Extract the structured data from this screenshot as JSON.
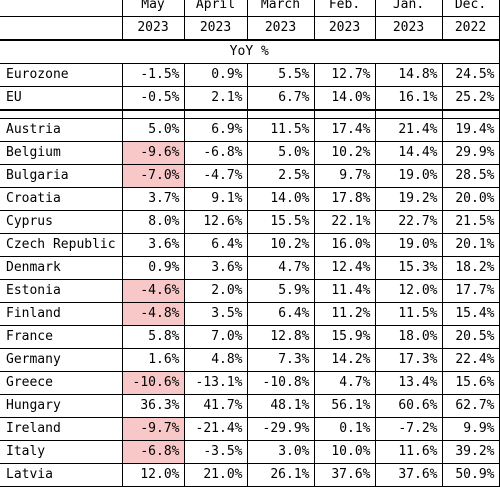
{
  "header": {
    "months": [
      "May",
      "April",
      "March",
      "Feb.",
      "Jan.",
      "Dec."
    ],
    "years": [
      "2023",
      "2023",
      "2023",
      "2023",
      "2023",
      "2022"
    ],
    "subtitle": "YoY %"
  },
  "highlight_color": "#f8c7c7",
  "aggregates": [
    {
      "country": "Eurozone",
      "values": [
        "-1.5%",
        "0.9%",
        "5.5%",
        "12.7%",
        "14.8%",
        "24.5%"
      ],
      "highlight": false
    },
    {
      "country": "EU",
      "values": [
        "-0.5%",
        "2.1%",
        "6.7%",
        "14.0%",
        "16.1%",
        "25.2%"
      ],
      "highlight": false
    }
  ],
  "countries": [
    {
      "country": "Austria",
      "values": [
        "5.0%",
        "6.9%",
        "11.5%",
        "17.4%",
        "21.4%",
        "19.4%"
      ],
      "highlight": false
    },
    {
      "country": "Belgium",
      "values": [
        "-9.6%",
        "-6.8%",
        "5.0%",
        "10.2%",
        "14.4%",
        "29.9%"
      ],
      "highlight": true
    },
    {
      "country": "Bulgaria",
      "values": [
        "-7.0%",
        "-4.7%",
        "2.5%",
        "9.7%",
        "19.0%",
        "28.5%"
      ],
      "highlight": true
    },
    {
      "country": "Croatia",
      "values": [
        "3.7%",
        "9.1%",
        "14.0%",
        "17.8%",
        "19.2%",
        "20.0%"
      ],
      "highlight": false
    },
    {
      "country": "Cyprus",
      "values": [
        "8.0%",
        "12.6%",
        "15.5%",
        "22.1%",
        "22.7%",
        "21.5%"
      ],
      "highlight": false
    },
    {
      "country": "Czech Republic",
      "values": [
        "3.6%",
        "6.4%",
        "10.2%",
        "16.0%",
        "19.0%",
        "20.1%"
      ],
      "highlight": false
    },
    {
      "country": "Denmark",
      "values": [
        "0.9%",
        "3.6%",
        "4.7%",
        "12.4%",
        "15.3%",
        "18.2%"
      ],
      "highlight": false
    },
    {
      "country": "Estonia",
      "values": [
        "-4.6%",
        "2.0%",
        "5.9%",
        "11.4%",
        "12.0%",
        "17.7%"
      ],
      "highlight": true
    },
    {
      "country": "Finland",
      "values": [
        "-4.8%",
        "3.5%",
        "6.4%",
        "11.2%",
        "11.5%",
        "15.4%"
      ],
      "highlight": true
    },
    {
      "country": "France",
      "values": [
        "5.8%",
        "7.0%",
        "12.8%",
        "15.9%",
        "18.0%",
        "20.5%"
      ],
      "highlight": false
    },
    {
      "country": "Germany",
      "values": [
        "1.6%",
        "4.8%",
        "7.3%",
        "14.2%",
        "17.3%",
        "22.4%"
      ],
      "highlight": false
    },
    {
      "country": "Greece",
      "values": [
        "-10.6%",
        "-13.1%",
        "-10.8%",
        "4.7%",
        "13.4%",
        "15.6%"
      ],
      "highlight": true
    },
    {
      "country": "Hungary",
      "values": [
        "36.3%",
        "41.7%",
        "48.1%",
        "56.1%",
        "60.6%",
        "62.7%"
      ],
      "highlight": false
    },
    {
      "country": "Ireland",
      "values": [
        "-9.7%",
        "-21.4%",
        "-29.9%",
        "0.1%",
        "-7.2%",
        "9.9%"
      ],
      "highlight": true
    },
    {
      "country": "Italy",
      "values": [
        "-6.8%",
        "-3.5%",
        "3.0%",
        "10.0%",
        "11.6%",
        "39.2%"
      ],
      "highlight": true
    },
    {
      "country": "Latvia",
      "values": [
        "12.0%",
        "21.0%",
        "26.1%",
        "37.6%",
        "37.6%",
        "50.9%"
      ],
      "highlight": false
    }
  ]
}
